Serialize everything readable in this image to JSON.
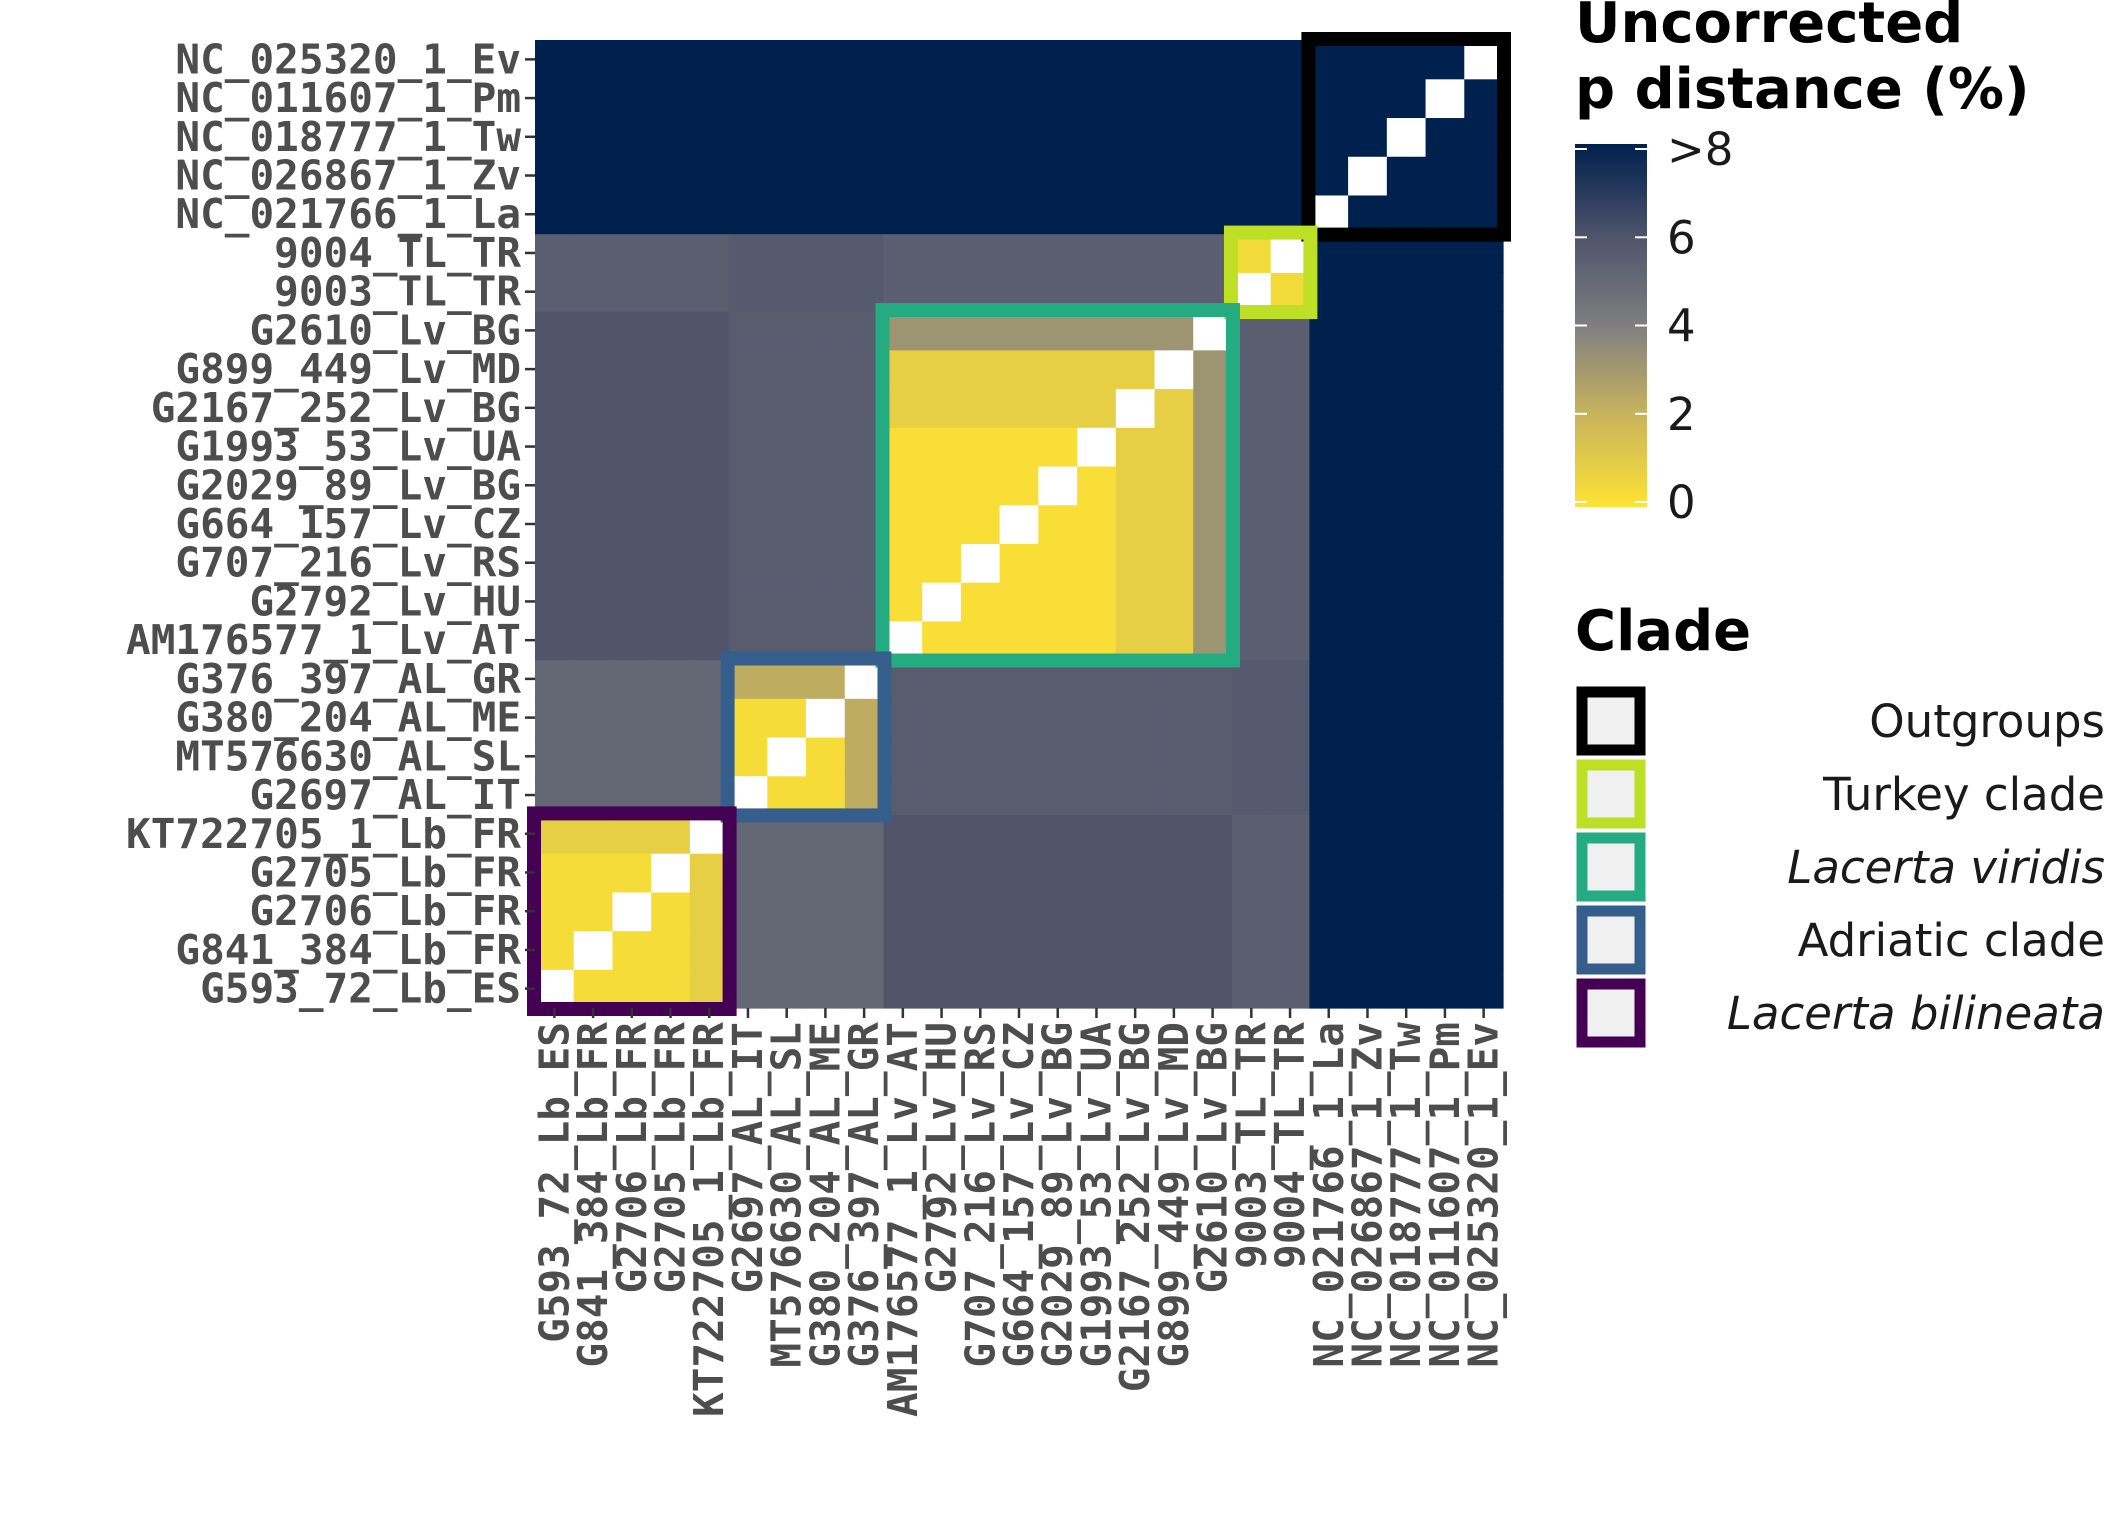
{
  "chart_data": {
    "type": "heatmap",
    "taxa": [
      "G593_72_Lb_ES",
      "G841_384_Lb_FR",
      "G2706_Lb_FR",
      "G2705_Lb_FR",
      "KT722705_1_Lb_FR",
      "G2697_AL_IT",
      "MT576630_AL_SL",
      "G380_204_AL_ME",
      "G376_397_AL_GR",
      "AM176577_1_Lv_AT",
      "G2792_Lv_HU",
      "G707_216_Lv_RS",
      "G664_157_Lv_CZ",
      "G2029_89_Lv_BG",
      "G1993_53_Lv_UA",
      "G2167_252_Lv_BG",
      "G899_449_Lv_MD",
      "G2610_Lv_BG",
      "9003_TL_TR",
      "9004_TL_TR",
      "NC_021766_1_La",
      "NC_026867_1_Zv",
      "NC_018777_1_Tw",
      "NC_011607_1_Pm",
      "NC_025320_1_Ev"
    ],
    "groups": [
      {
        "key": "Lb",
        "members": [
          0,
          1,
          2,
          3,
          4
        ]
      },
      {
        "key": "AL",
        "members": [
          5,
          6,
          7,
          8
        ]
      },
      {
        "key": "Lv",
        "members": [
          9,
          10,
          11,
          12,
          13,
          14,
          15,
          16,
          17
        ]
      },
      {
        "key": "TL",
        "members": [
          18,
          19
        ]
      },
      {
        "key": "OUT",
        "members": [
          20,
          21,
          22,
          23,
          24
        ]
      }
    ],
    "between_group_distance": {
      "Lb-AL": 5.1,
      "Lb-Lv": 5.9,
      "Lb-TL": 5.5,
      "Lb-OUT": 8.5,
      "AL-Lv": 5.6,
      "AL-TL": 5.7,
      "AL-OUT": 8.5,
      "Lv-TL": 5.5,
      "Lv-OUT": 8.5,
      "TL-OUT": 8.5,
      "OUT-OUT": 8.5
    },
    "within_group_distance": {
      "Lb": {
        "default": 0.3,
        "outlier_member": 4,
        "outlier_value": 0.9
      },
      "AL": {
        "default": 0.3,
        "outlier_member": 8,
        "outlier_value": 2.3
      },
      "Lv": {
        "default": 0.2,
        "mid_members": [
          15,
          16
        ],
        "mid_value": 0.9,
        "outlier_member": 17,
        "outlier_value": 3.2
      },
      "TL": {
        "default": 0.4
      }
    },
    "diagonal": "white",
    "color_scale": {
      "title": [
        "Uncorrected",
        "p distance (%)"
      ],
      "range": [
        0,
        8
      ],
      "ticks": [
        "0",
        "2",
        "4",
        "6",
        ">8"
      ],
      "tick_values": [
        0,
        2,
        4,
        6,
        8
      ],
      "colors": [
        "#FDE333",
        "#C9B45C",
        "#7F7F80",
        "#4D536B",
        "#00204D"
      ]
    },
    "legend": {
      "title": "Clade",
      "items": [
        {
          "label": "Outgroups",
          "color": "#000000",
          "italic": false,
          "group": "OUT"
        },
        {
          "label": "Turkey clade",
          "color": "#BDDF26",
          "italic": false,
          "group": "TL"
        },
        {
          "label": "Lacerta viridis",
          "color": "#25AB82",
          "italic": true,
          "group": "Lv"
        },
        {
          "label": "Adriatic clade",
          "color": "#355E8D",
          "italic": false,
          "group": "AL"
        },
        {
          "label": "Lacerta bilineata",
          "color": "#440154",
          "italic": true,
          "group": "Lb"
        }
      ]
    }
  }
}
